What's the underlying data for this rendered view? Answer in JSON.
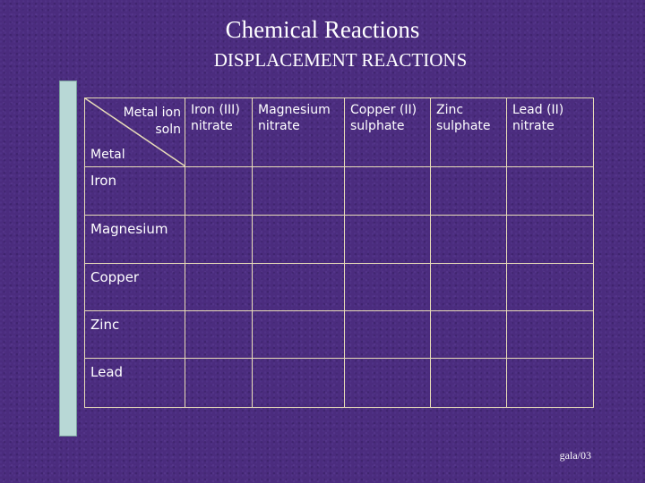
{
  "slide": {
    "title": "Chemical Reactions",
    "subtitle": "DISPLACEMENT REACTIONS",
    "footer": "gala/03"
  },
  "table": {
    "corner_top": "Metal ion\nsoln",
    "corner_bottom": "Metal",
    "columns": [
      "Iron (III)\nnitrate",
      "Magnesium\nnitrate",
      "Copper (II)\nsulphate",
      "Zinc\nsulphate",
      "Lead (II)\nnitrate"
    ],
    "rows": [
      "Iron",
      "Magnesium",
      "Copper",
      "Zinc",
      "Lead"
    ]
  },
  "colors": {
    "background": "#4b2c7e",
    "grid_lines": "#e8dcb8",
    "left_bar": "#b8d8d6",
    "text": "#ffffff"
  }
}
